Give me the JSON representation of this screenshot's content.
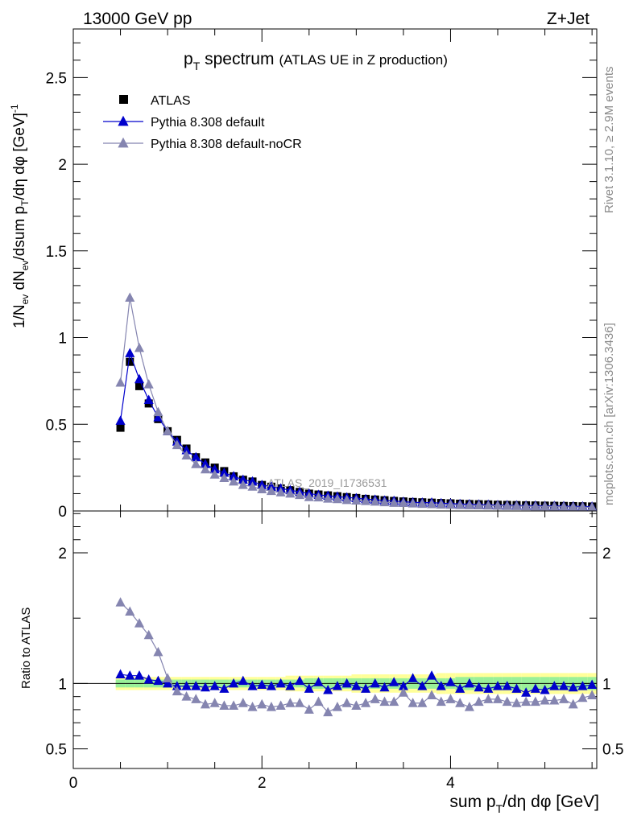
{
  "header": {
    "energy_label": "13000 GeV pp",
    "process_label": "Z+Jet"
  },
  "plot_title": {
    "main": "p",
    "sub": "T",
    "rest": " spectrum",
    "note": "(ATLAS UE in Z production)"
  },
  "y_axis_label": {
    "a": "1/N",
    "a_sub": "ev",
    "b": " dN",
    "b_sub": "ev",
    "c": "/dsum p",
    "c_sub": "T",
    "d": "/dη dφ  [GeV]",
    "d_sup": "-1"
  },
  "ratio_axis_label": "Ratio to ATLAS",
  "x_axis_label": {
    "a": "sum p",
    "a_sub": "T",
    "b": "/dη dφ [GeV]"
  },
  "analysis_id": "ATLAS_2019_I1736531",
  "side_text": {
    "rivet": "Rivet 3.1.10, ≥ 2.9M events",
    "site": "mcplots.cern.ch [arXiv:1306.3436]"
  },
  "legend": [
    {
      "label": "ATLAS",
      "color": "#000000",
      "marker": "square"
    },
    {
      "label": "Pythia 8.308 default",
      "color": "#0000cc",
      "marker": "triangle"
    },
    {
      "label": "Pythia 8.308 default-noCR",
      "color": "#8585b0",
      "marker": "triangle"
    }
  ],
  "chart_data": [
    {
      "type": "scatter",
      "panel": "main",
      "xlim": [
        0,
        5.55
      ],
      "ylim": [
        0,
        2.78
      ],
      "x_ticks": [
        0,
        2,
        4
      ],
      "y_ticks": [
        0,
        0.5,
        1,
        1.5,
        2,
        2.5
      ],
      "y_tick_labels": [
        "0",
        "0.5",
        "1",
        "1.5",
        "2",
        "2.5"
      ],
      "x": [
        0.5,
        0.6,
        0.7,
        0.8,
        0.9,
        1.0,
        1.1,
        1.2,
        1.3,
        1.4,
        1.5,
        1.6,
        1.7,
        1.8,
        1.9,
        2.0,
        2.1,
        2.2,
        2.3,
        2.4,
        2.5,
        2.6,
        2.7,
        2.8,
        2.9,
        3.0,
        3.1,
        3.2,
        3.3,
        3.4,
        3.5,
        3.6,
        3.7,
        3.8,
        3.9,
        4.0,
        4.1,
        4.2,
        4.3,
        4.4,
        4.5,
        4.6,
        4.7,
        4.8,
        4.9,
        5.0,
        5.1,
        5.2,
        5.3,
        5.4,
        5.5
      ],
      "series": [
        {
          "name": "ATLAS",
          "values": [
            0.48,
            0.86,
            0.72,
            0.62,
            0.53,
            0.46,
            0.41,
            0.36,
            0.31,
            0.28,
            0.25,
            0.23,
            0.2,
            0.18,
            0.17,
            0.15,
            0.14,
            0.13,
            0.12,
            0.11,
            0.1,
            0.095,
            0.09,
            0.085,
            0.08,
            0.075,
            0.07,
            0.066,
            0.062,
            0.058,
            0.055,
            0.052,
            0.05,
            0.048,
            0.046,
            0.044,
            0.042,
            0.04,
            0.039,
            0.038,
            0.036,
            0.035,
            0.034,
            0.033,
            0.032,
            0.031,
            0.03,
            0.029,
            0.028,
            0.027,
            0.026
          ]
        },
        {
          "name": "Pythia 8.308 default",
          "values": [
            0.52,
            0.91,
            0.76,
            0.64,
            0.54,
            0.46,
            0.4,
            0.35,
            0.31,
            0.27,
            0.24,
            0.22,
            0.2,
            0.18,
            0.17,
            0.15,
            0.14,
            0.13,
            0.12,
            0.11,
            0.1,
            0.093,
            0.088,
            0.083,
            0.078,
            0.074,
            0.068,
            0.065,
            0.06,
            0.058,
            0.053,
            0.05,
            0.048,
            0.048,
            0.045,
            0.043,
            0.04,
            0.039,
            0.037,
            0.036,
            0.034,
            0.033,
            0.032,
            0.031,
            0.031,
            0.029,
            0.029,
            0.028,
            0.027,
            0.026,
            0.025
          ]
        },
        {
          "name": "Pythia 8.308 default-noCR",
          "values": [
            0.74,
            1.23,
            0.94,
            0.73,
            0.57,
            0.46,
            0.38,
            0.32,
            0.27,
            0.24,
            0.21,
            0.19,
            0.17,
            0.15,
            0.14,
            0.125,
            0.115,
            0.107,
            0.1,
            0.092,
            0.08,
            0.078,
            0.071,
            0.068,
            0.063,
            0.06,
            0.057,
            0.054,
            0.05,
            0.047,
            0.046,
            0.043,
            0.041,
            0.039,
            0.037,
            0.036,
            0.034,
            0.033,
            0.032,
            0.031,
            0.03,
            0.029,
            0.028,
            0.027,
            0.026,
            0.026,
            0.025,
            0.024,
            0.023,
            0.022,
            0.021
          ]
        }
      ]
    },
    {
      "type": "scatter",
      "panel": "ratio",
      "xlim": [
        0,
        5.55
      ],
      "ylim": [
        0.35,
        2.32
      ],
      "x_ticks": [
        0,
        2,
        4
      ],
      "x_tick_labels": [
        "0",
        "2",
        "4"
      ],
      "y_ticks": [
        0.5,
        1,
        2
      ],
      "y_tick_labels": [
        "0.5",
        "1",
        "2"
      ],
      "x": [
        0.5,
        0.6,
        0.7,
        0.8,
        0.9,
        1.0,
        1.1,
        1.2,
        1.3,
        1.4,
        1.5,
        1.6,
        1.7,
        1.8,
        1.9,
        2.0,
        2.1,
        2.2,
        2.3,
        2.4,
        2.5,
        2.6,
        2.7,
        2.8,
        2.9,
        3.0,
        3.1,
        3.2,
        3.3,
        3.4,
        3.5,
        3.6,
        3.7,
        3.8,
        3.9,
        4.0,
        4.1,
        4.2,
        4.3,
        4.4,
        4.5,
        4.6,
        4.7,
        4.8,
        4.9,
        5.0,
        5.1,
        5.2,
        5.3,
        5.4,
        5.5
      ],
      "bands": {
        "outer_half_width": [
          0.05,
          0.05,
          0.05,
          0.05,
          0.05,
          0.05,
          0.05,
          0.05,
          0.05,
          0.05,
          0.05,
          0.05,
          0.05,
          0.05,
          0.05,
          0.05,
          0.05,
          0.05,
          0.06,
          0.06,
          0.06,
          0.06,
          0.06,
          0.06,
          0.06,
          0.07,
          0.07,
          0.07,
          0.07,
          0.07,
          0.07,
          0.07,
          0.07,
          0.07,
          0.08,
          0.08,
          0.08,
          0.08,
          0.08,
          0.08,
          0.08,
          0.08,
          0.08,
          0.08,
          0.08,
          0.08,
          0.08,
          0.08,
          0.08,
          0.08,
          0.08
        ],
        "inner_half_width": [
          0.03,
          0.03,
          0.03,
          0.03,
          0.03,
          0.03,
          0.03,
          0.03,
          0.03,
          0.03,
          0.03,
          0.03,
          0.03,
          0.03,
          0.03,
          0.03,
          0.03,
          0.03,
          0.03,
          0.03,
          0.04,
          0.04,
          0.04,
          0.04,
          0.04,
          0.04,
          0.04,
          0.04,
          0.04,
          0.04,
          0.04,
          0.04,
          0.04,
          0.04,
          0.04,
          0.04,
          0.05,
          0.05,
          0.05,
          0.05,
          0.05,
          0.05,
          0.05,
          0.05,
          0.05,
          0.05,
          0.05,
          0.05,
          0.05,
          0.05,
          0.05
        ]
      },
      "series": [
        {
          "name": "Pythia 8.308 default",
          "values": [
            1.07,
            1.06,
            1.06,
            1.03,
            1.02,
            1.0,
            0.98,
            0.98,
            0.98,
            0.97,
            0.98,
            0.96,
            1.0,
            1.02,
            0.98,
            0.99,
            0.98,
            1.0,
            0.98,
            1.02,
            0.96,
            1.01,
            0.95,
            0.98,
            1.0,
            0.98,
            0.96,
            1.0,
            0.97,
            1.01,
            0.98,
            1.04,
            0.98,
            1.06,
            0.98,
            1.01,
            0.96,
            1.0,
            0.97,
            0.96,
            0.98,
            0.98,
            0.96,
            0.93,
            0.96,
            0.95,
            0.98,
            0.98,
            0.97,
            0.98,
            0.99
          ]
        },
        {
          "name": "Pythia 8.308 default-noCR",
          "values": [
            1.62,
            1.55,
            1.46,
            1.37,
            1.24,
            1.04,
            0.94,
            0.9,
            0.88,
            0.84,
            0.85,
            0.83,
            0.83,
            0.85,
            0.82,
            0.84,
            0.82,
            0.83,
            0.85,
            0.85,
            0.8,
            0.86,
            0.78,
            0.82,
            0.85,
            0.83,
            0.85,
            0.88,
            0.86,
            0.86,
            0.93,
            0.85,
            0.85,
            0.91,
            0.86,
            0.88,
            0.85,
            0.82,
            0.86,
            0.88,
            0.88,
            0.86,
            0.85,
            0.86,
            0.86,
            0.87,
            0.87,
            0.88,
            0.84,
            0.89,
            0.91
          ]
        }
      ]
    }
  ]
}
